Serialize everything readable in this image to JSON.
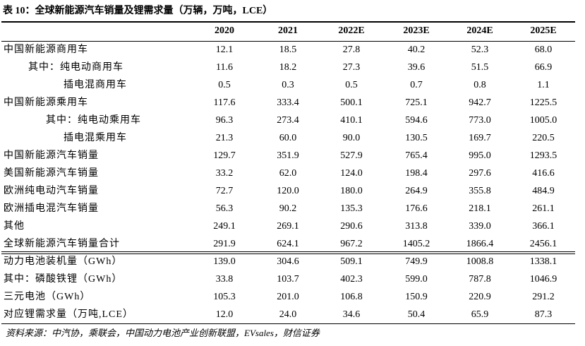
{
  "title": "表 10：全球新能源汽车销量及锂需求量（万辆，万吨，LCE）",
  "table": {
    "header": [
      "2020",
      "2021",
      "2022E",
      "2023E",
      "2024E",
      "2025E"
    ],
    "rows": [
      {
        "label": "中国新能源商用车",
        "values": [
          "12.1",
          "18.5",
          "27.8",
          "40.2",
          "52.3",
          "68.0"
        ]
      },
      {
        "label": "其中：纯电动商用车",
        "values": [
          "11.6",
          "18.2",
          "27.3",
          "39.6",
          "51.5",
          "66.9"
        ]
      },
      {
        "label": "插电混商用车",
        "values": [
          "0.5",
          "0.3",
          "0.5",
          "0.7",
          "0.8",
          "1.1"
        ]
      },
      {
        "label": "中国新能源乘用车",
        "values": [
          "117.6",
          "333.4",
          "500.1",
          "725.1",
          "942.7",
          "1225.5"
        ]
      },
      {
        "label": "其中：纯电动乘用车",
        "values": [
          "96.3",
          "273.4",
          "410.1",
          "594.6",
          "773.0",
          "1005.0"
        ]
      },
      {
        "label": "插电混乘用车",
        "values": [
          "21.3",
          "60.0",
          "90.0",
          "130.5",
          "169.7",
          "220.5"
        ]
      },
      {
        "label": "中国新能源汽车销量",
        "values": [
          "129.7",
          "351.9",
          "527.9",
          "765.4",
          "995.0",
          "1293.5"
        ]
      },
      {
        "label": "美国新能源汽车销量",
        "values": [
          "33.2",
          "62.0",
          "124.0",
          "198.4",
          "297.6",
          "416.6"
        ]
      },
      {
        "label": "欧洲纯电动汽车销量",
        "values": [
          "72.7",
          "120.0",
          "180.0",
          "264.9",
          "355.8",
          "484.9"
        ]
      },
      {
        "label": "欧洲插电混汽车销量",
        "values": [
          "56.3",
          "90.2",
          "135.3",
          "176.6",
          "218.1",
          "261.1"
        ]
      },
      {
        "label": "其他",
        "values": [
          "249.1",
          "269.1",
          "290.6",
          "313.8",
          "339.0",
          "366.1"
        ]
      },
      {
        "label": "全球新能源汽车销量合计",
        "values": [
          "291.9",
          "624.1",
          "967.2",
          "1405.2",
          "1866.4",
          "2456.1"
        ]
      },
      {
        "label": "动力电池装机量（GWh）",
        "values": [
          "139.0",
          "304.6",
          "509.1",
          "749.9",
          "1008.8",
          "1338.1"
        ]
      },
      {
        "label": "其中：磷酸铁锂（GWh）",
        "values": [
          "33.8",
          "103.7",
          "402.3",
          "599.0",
          "787.8",
          "1046.9"
        ]
      },
      {
        "label": "三元电池（GWh）",
        "values": [
          "105.3",
          "201.0",
          "106.8",
          "150.9",
          "220.9",
          "291.2"
        ]
      },
      {
        "label": "对应锂需求量（万吨,LCE）",
        "values": [
          "12.0",
          "24.0",
          "34.6",
          "50.4",
          "65.9",
          "87.3"
        ]
      }
    ]
  },
  "source": "资料来源：中汽协，乘联会，中国动力电池产业创新联盟，EVsales，财信证券"
}
